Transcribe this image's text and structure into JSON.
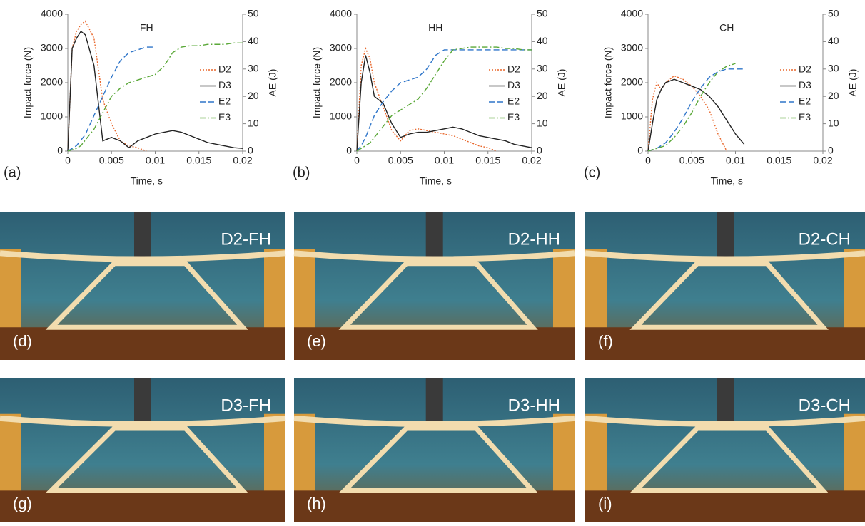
{
  "chart_data": [
    {
      "type": "line",
      "title": "FH",
      "panel": "(a)",
      "x_label": "Time, s",
      "y_label": "Impact force (N)",
      "y2_label": "AE (J)",
      "xlim": [
        0,
        0.02
      ],
      "xticks": [
        0,
        0.005,
        0.01,
        0.015,
        0.02
      ],
      "ylim": [
        0,
        4000
      ],
      "yticks": [
        0,
        1000,
        2000,
        3000,
        4000
      ],
      "y2lim": [
        0,
        50
      ],
      "y2ticks": [
        0,
        10,
        20,
        30,
        40,
        50
      ],
      "x": [
        0,
        0.0005,
        0.001,
        0.0015,
        0.002,
        0.003,
        0.004,
        0.005,
        0.006,
        0.007,
        0.008,
        0.009,
        0.01,
        0.011,
        0.012,
        0.013,
        0.014,
        0.015,
        0.016,
        0.017,
        0.018,
        0.019,
        0.02
      ],
      "series": [
        {
          "name": "D2",
          "color": "#e8662a",
          "dash": "dotted",
          "values": [
            0,
            3000,
            3500,
            3700,
            3800,
            3300,
            1500,
            800,
            300,
            150,
            100,
            0,
            null,
            null,
            null,
            null,
            null,
            null,
            null,
            null,
            null,
            null,
            null
          ]
        },
        {
          "name": "D3",
          "color": "#222222",
          "dash": "solid",
          "values": [
            0,
            3000,
            3300,
            3500,
            3400,
            2500,
            300,
            400,
            300,
            100,
            300,
            400,
            500,
            550,
            600,
            550,
            450,
            350,
            250,
            200,
            150,
            100,
            80
          ]
        },
        {
          "name": "E2",
          "color": "#2e75c9",
          "dash": "dashed",
          "axis": "y2",
          "values": [
            0,
            1,
            2,
            4,
            6,
            13,
            20,
            27,
            33,
            36,
            37,
            38,
            38,
            null,
            null,
            null,
            null,
            null,
            null,
            null,
            null,
            null,
            null
          ]
        },
        {
          "name": "E3",
          "color": "#5aa838",
          "dash": "dashdot",
          "axis": "y2",
          "values": [
            0,
            0.5,
            1,
            2,
            4,
            8,
            14,
            20,
            23,
            25,
            26,
            27,
            28,
            31,
            36,
            38,
            38.5,
            38.5,
            39,
            39,
            39,
            39.5,
            39.5
          ]
        }
      ]
    },
    {
      "type": "line",
      "title": "HH",
      "panel": "(b)",
      "x_label": "Time, s",
      "y_label": "Impact force (N)",
      "y2_label": "AE (J)",
      "xlim": [
        0,
        0.02
      ],
      "xticks": [
        0,
        0.005,
        0.01,
        0.015,
        0.02
      ],
      "ylim": [
        0,
        4000
      ],
      "yticks": [
        0,
        1000,
        2000,
        3000,
        4000
      ],
      "y2lim": [
        0,
        50
      ],
      "y2ticks": [
        0,
        10,
        20,
        30,
        40,
        50
      ],
      "x": [
        0,
        0.0005,
        0.001,
        0.0015,
        0.002,
        0.003,
        0.004,
        0.005,
        0.006,
        0.007,
        0.008,
        0.009,
        0.01,
        0.011,
        0.012,
        0.013,
        0.014,
        0.015,
        0.016,
        0.017,
        0.018,
        0.019,
        0.02
      ],
      "series": [
        {
          "name": "D2",
          "color": "#e8662a",
          "dash": "dotted",
          "values": [
            0,
            2500,
            3000,
            2700,
            2000,
            1300,
            600,
            300,
            600,
            650,
            600,
            550,
            500,
            450,
            350,
            250,
            150,
            100,
            0,
            null,
            null,
            null,
            null
          ]
        },
        {
          "name": "D3",
          "color": "#222222",
          "dash": "solid",
          "values": [
            0,
            2000,
            2800,
            2300,
            1600,
            1400,
            800,
            400,
            500,
            550,
            550,
            600,
            650,
            700,
            650,
            550,
            450,
            400,
            350,
            300,
            200,
            150,
            100
          ]
        },
        {
          "name": "E2",
          "color": "#2e75c9",
          "dash": "dashed",
          "axis": "y2",
          "values": [
            0,
            2,
            5,
            9,
            13,
            18,
            22,
            25,
            26,
            27,
            30,
            35,
            37,
            37,
            37,
            37,
            37,
            37,
            37,
            37,
            37,
            37,
            37
          ]
        },
        {
          "name": "E3",
          "color": "#5aa838",
          "dash": "dashdot",
          "axis": "y2",
          "values": [
            0,
            1,
            2,
            3,
            5,
            9,
            13,
            15,
            17,
            19,
            23,
            28,
            33,
            37,
            37.5,
            38,
            38,
            38,
            38,
            37.5,
            37.5,
            37,
            37
          ]
        }
      ]
    },
    {
      "type": "line",
      "title": "CH",
      "panel": "(c)",
      "x_label": "Time, s",
      "y_label": "Impact force (N)",
      "y2_label": "AE (J)",
      "xlim": [
        0,
        0.02
      ],
      "xticks": [
        0,
        0.005,
        0.01,
        0.015,
        0.02
      ],
      "ylim": [
        0,
        4000
      ],
      "yticks": [
        0,
        1000,
        2000,
        3000,
        4000
      ],
      "y2lim": [
        0,
        50
      ],
      "y2ticks": [
        0,
        10,
        20,
        30,
        40,
        50
      ],
      "x": [
        0,
        0.0005,
        0.001,
        0.0015,
        0.002,
        0.003,
        0.004,
        0.005,
        0.006,
        0.007,
        0.008,
        0.009,
        0.01,
        0.011,
        0.012,
        0.013,
        0.014,
        0.015,
        0.016,
        0.017,
        0.018,
        0.019,
        0.02
      ],
      "series": [
        {
          "name": "D2",
          "color": "#e8662a",
          "dash": "dotted",
          "values": [
            0,
            1500,
            2000,
            1800,
            2000,
            2200,
            2100,
            1900,
            1600,
            1200,
            500,
            0,
            null,
            null,
            null,
            null,
            null,
            null,
            null,
            null,
            null,
            null,
            null
          ]
        },
        {
          "name": "D3",
          "color": "#222222",
          "dash": "solid",
          "values": [
            0,
            800,
            1500,
            1800,
            2000,
            2100,
            2000,
            1900,
            1800,
            1600,
            1300,
            900,
            500,
            200,
            null,
            null,
            null,
            null,
            null,
            null,
            null,
            null,
            null
          ]
        },
        {
          "name": "E2",
          "color": "#2e75c9",
          "dash": "dashed",
          "axis": "y2",
          "values": [
            0,
            0.5,
            1,
            2,
            3,
            7,
            12,
            18,
            23,
            27,
            29,
            30,
            30,
            30,
            null,
            null,
            null,
            null,
            null,
            null,
            null,
            null,
            null
          ]
        },
        {
          "name": "E3",
          "color": "#5aa838",
          "dash": "dashdot",
          "axis": "y2",
          "values": [
            0,
            0.5,
            1,
            1.5,
            2,
            5,
            9,
            14,
            20,
            25,
            29,
            31,
            32,
            null,
            null,
            null,
            null,
            null,
            null,
            null,
            null,
            null,
            null
          ]
        }
      ]
    }
  ],
  "photos": [
    {
      "label": "D2-FH",
      "panel": "(d)"
    },
    {
      "label": "D2-HH",
      "panel": "(e)"
    },
    {
      "label": "D2-CH",
      "panel": "(f)"
    },
    {
      "label": "D3-FH",
      "panel": "(g)"
    },
    {
      "label": "D3-HH",
      "panel": "(h)"
    },
    {
      "label": "D3-CH",
      "panel": "(i)"
    }
  ]
}
